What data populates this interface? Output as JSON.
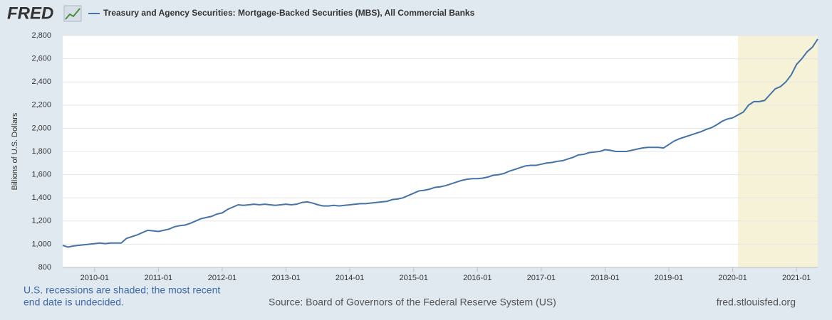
{
  "logo": "FRED",
  "chart_data": {
    "type": "line",
    "title": "Treasury and Agency Securities: Mortgage-Backed Securities (MBS), All Commercial Banks",
    "y_label": "Billions of U.S. Dollars",
    "x": [
      "2009-07",
      "2009-08",
      "2009-09",
      "2009-10",
      "2009-11",
      "2009-12",
      "2010-01",
      "2010-02",
      "2010-03",
      "2010-04",
      "2010-05",
      "2010-06",
      "2010-07",
      "2010-08",
      "2010-09",
      "2010-10",
      "2010-11",
      "2010-12",
      "2011-01",
      "2011-02",
      "2011-03",
      "2011-04",
      "2011-05",
      "2011-06",
      "2011-07",
      "2011-08",
      "2011-09",
      "2011-10",
      "2011-11",
      "2011-12",
      "2012-01",
      "2012-02",
      "2012-03",
      "2012-04",
      "2012-05",
      "2012-06",
      "2012-07",
      "2012-08",
      "2012-09",
      "2012-10",
      "2012-11",
      "2012-12",
      "2013-01",
      "2013-02",
      "2013-03",
      "2013-04",
      "2013-05",
      "2013-06",
      "2013-07",
      "2013-08",
      "2013-09",
      "2013-10",
      "2013-11",
      "2013-12",
      "2014-01",
      "2014-02",
      "2014-03",
      "2014-04",
      "2014-05",
      "2014-06",
      "2014-07",
      "2014-08",
      "2014-09",
      "2014-10",
      "2014-11",
      "2014-12",
      "2015-01",
      "2015-02",
      "2015-03",
      "2015-04",
      "2015-05",
      "2015-06",
      "2015-07",
      "2015-08",
      "2015-09",
      "2015-10",
      "2015-11",
      "2015-12",
      "2016-01",
      "2016-02",
      "2016-03",
      "2016-04",
      "2016-05",
      "2016-06",
      "2016-07",
      "2016-08",
      "2016-09",
      "2016-10",
      "2016-11",
      "2016-12",
      "2017-01",
      "2017-02",
      "2017-03",
      "2017-04",
      "2017-05",
      "2017-06",
      "2017-07",
      "2017-08",
      "2017-09",
      "2017-10",
      "2017-11",
      "2017-12",
      "2018-01",
      "2018-02",
      "2018-03",
      "2018-04",
      "2018-05",
      "2018-06",
      "2018-07",
      "2018-08",
      "2018-09",
      "2018-10",
      "2018-11",
      "2018-12",
      "2019-01",
      "2019-02",
      "2019-03",
      "2019-04",
      "2019-05",
      "2019-06",
      "2019-07",
      "2019-08",
      "2019-09",
      "2019-10",
      "2019-11",
      "2019-12",
      "2020-01",
      "2020-02",
      "2020-03",
      "2020-04",
      "2020-05",
      "2020-06",
      "2020-07",
      "2020-08",
      "2020-09",
      "2020-10",
      "2020-11",
      "2020-12",
      "2021-01",
      "2021-02",
      "2021-03",
      "2021-04",
      "2021-05"
    ],
    "series": [
      {
        "name": "Treasury and Agency Securities: Mortgage-Backed Securities (MBS), All Commercial Banks",
        "color": "#4572a7",
        "values": [
          990,
          975,
          985,
          990,
          995,
          1000,
          1005,
          1010,
          1005,
          1010,
          1010,
          1010,
          1050,
          1065,
          1080,
          1100,
          1120,
          1115,
          1110,
          1120,
          1130,
          1150,
          1160,
          1165,
          1180,
          1200,
          1220,
          1230,
          1240,
          1260,
          1270,
          1300,
          1320,
          1340,
          1335,
          1340,
          1345,
          1340,
          1345,
          1340,
          1335,
          1340,
          1345,
          1340,
          1345,
          1360,
          1365,
          1355,
          1340,
          1330,
          1330,
          1335,
          1330,
          1335,
          1340,
          1345,
          1350,
          1350,
          1355,
          1360,
          1365,
          1370,
          1385,
          1390,
          1400,
          1420,
          1440,
          1460,
          1465,
          1475,
          1490,
          1495,
          1505,
          1520,
          1535,
          1550,
          1560,
          1565,
          1565,
          1570,
          1580,
          1595,
          1600,
          1610,
          1630,
          1645,
          1660,
          1675,
          1680,
          1680,
          1690,
          1700,
          1705,
          1715,
          1720,
          1735,
          1750,
          1770,
          1775,
          1790,
          1795,
          1800,
          1815,
          1810,
          1800,
          1800,
          1800,
          1810,
          1820,
          1830,
          1835,
          1835,
          1835,
          1830,
          1860,
          1890,
          1910,
          1925,
          1940,
          1955,
          1970,
          1990,
          2005,
          2030,
          2060,
          2080,
          2090,
          2115,
          2140,
          2200,
          2230,
          2230,
          2240,
          2290,
          2340,
          2360,
          2400,
          2460,
          2550,
          2600,
          2660,
          2700,
          2770
        ]
      }
    ],
    "xlim": [
      "2009-07",
      "2021-05"
    ],
    "xticks": [
      "2010-01",
      "2011-01",
      "2012-01",
      "2013-01",
      "2014-01",
      "2015-01",
      "2016-01",
      "2017-01",
      "2018-01",
      "2019-01",
      "2020-01",
      "2021-01"
    ],
    "ylim": [
      800,
      2800
    ],
    "yticks": [
      800,
      {
        "value": 1000,
        "label": "1,000"
      },
      {
        "value": 1200,
        "label": "1,200"
      },
      {
        "value": 1400,
        "label": "1,400"
      },
      {
        "value": 1600,
        "label": "1,600"
      },
      {
        "value": 1800,
        "label": "1,800"
      },
      {
        "value": 2000,
        "label": "2,000"
      },
      {
        "value": 2200,
        "label": "2,200"
      },
      {
        "value": 2400,
        "label": "2,400"
      },
      {
        "value": 2600,
        "label": "2,600"
      },
      {
        "value": 2800,
        "label": "2,800"
      }
    ],
    "grid": true,
    "recessions": [
      {
        "start": "2020-02",
        "end": "2021-05",
        "color": "#f5f2d8"
      }
    ]
  },
  "note": [
    "U.S. recessions are shaded; the most recent",
    "end date is undecided."
  ],
  "source": "Source: Board of Governors of the Federal Reserve System (US)",
  "site": "fred.stlouisfed.org"
}
